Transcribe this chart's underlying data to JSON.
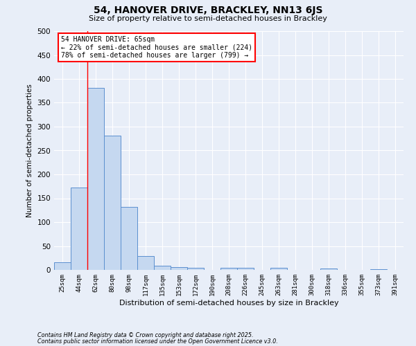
{
  "title1": "54, HANOVER DRIVE, BRACKLEY, NN13 6JS",
  "title2": "Size of property relative to semi-detached houses in Brackley",
  "xlabel": "Distribution of semi-detached houses by size in Brackley",
  "ylabel": "Number of semi-detached properties",
  "categories": [
    "25sqm",
    "44sqm",
    "62sqm",
    "80sqm",
    "98sqm",
    "117sqm",
    "135sqm",
    "153sqm",
    "172sqm",
    "190sqm",
    "208sqm",
    "226sqm",
    "245sqm",
    "263sqm",
    "281sqm",
    "300sqm",
    "318sqm",
    "336sqm",
    "355sqm",
    "373sqm",
    "391sqm"
  ],
  "values": [
    16,
    172,
    381,
    281,
    132,
    29,
    9,
    6,
    4,
    0,
    4,
    5,
    0,
    4,
    0,
    0,
    3,
    0,
    0,
    2,
    0
  ],
  "bar_color": "#c5d8f0",
  "bar_edge_color": "#5b8fcf",
  "background_color": "#e8eef8",
  "grid_color": "#ffffff",
  "red_line_index": 2,
  "property_label": "54 HANOVER DRIVE: 65sqm",
  "annotation_line1": "← 22% of semi-detached houses are smaller (224)",
  "annotation_line2": "78% of semi-detached houses are larger (799) →",
  "footer1": "Contains HM Land Registry data © Crown copyright and database right 2025.",
  "footer2": "Contains public sector information licensed under the Open Government Licence v3.0.",
  "ylim": [
    0,
    500
  ],
  "yticks": [
    0,
    50,
    100,
    150,
    200,
    250,
    300,
    350,
    400,
    450,
    500
  ]
}
